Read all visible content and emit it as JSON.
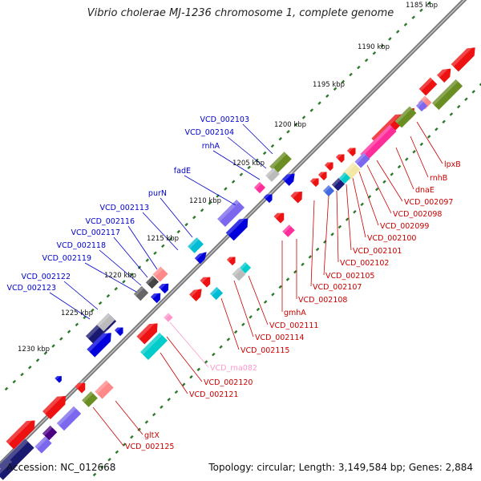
{
  "title": "Vibrio cholerae MJ-1236 chromosome 1, complete genome",
  "footer": {
    "accession": "Accession: NC_012668",
    "summary": "Topology: circular; Length: 3,149,584 bp; Genes: 2,884"
  },
  "ruler": {
    "ticks": [
      "1185 kbp",
      "1190 kbp",
      "1195 kbp",
      "1200 kbp",
      "1205 kbp",
      "1210 kbp",
      "1215 kbp",
      "1220 kbp",
      "1225 kbp",
      "1230 kbp"
    ]
  },
  "colors": {
    "forward_label": "#0000cc",
    "reverse_label": "#cc0000",
    "rna_label": "#ff99cc",
    "backbone": "#777777",
    "tick": "#2d7a2d"
  },
  "labels_forward": [
    "VCD_002103",
    "VCD_002104",
    "rnhA",
    "fadE",
    "purN",
    "VCD_002113",
    "VCD_002116",
    "VCD_002117",
    "VCD_002118",
    "VCD_002119",
    "VCD_002122",
    "VCD_002123"
  ],
  "labels_reverse": [
    "lpxB",
    "rnhB",
    "dnaE",
    "VCD_002097",
    "VCD_002098",
    "VCD_002099",
    "VCD_002100",
    "VCD_002101",
    "VCD_002102",
    "VCD_002105",
    "VCD_002107",
    "VCD_002108",
    "gmhA",
    "VCD_002111",
    "VCD_002114",
    "VCD_002115",
    "VCD_rna082",
    "VCD_002120",
    "VCD_002121",
    "gltX",
    "VCD_002125"
  ]
}
